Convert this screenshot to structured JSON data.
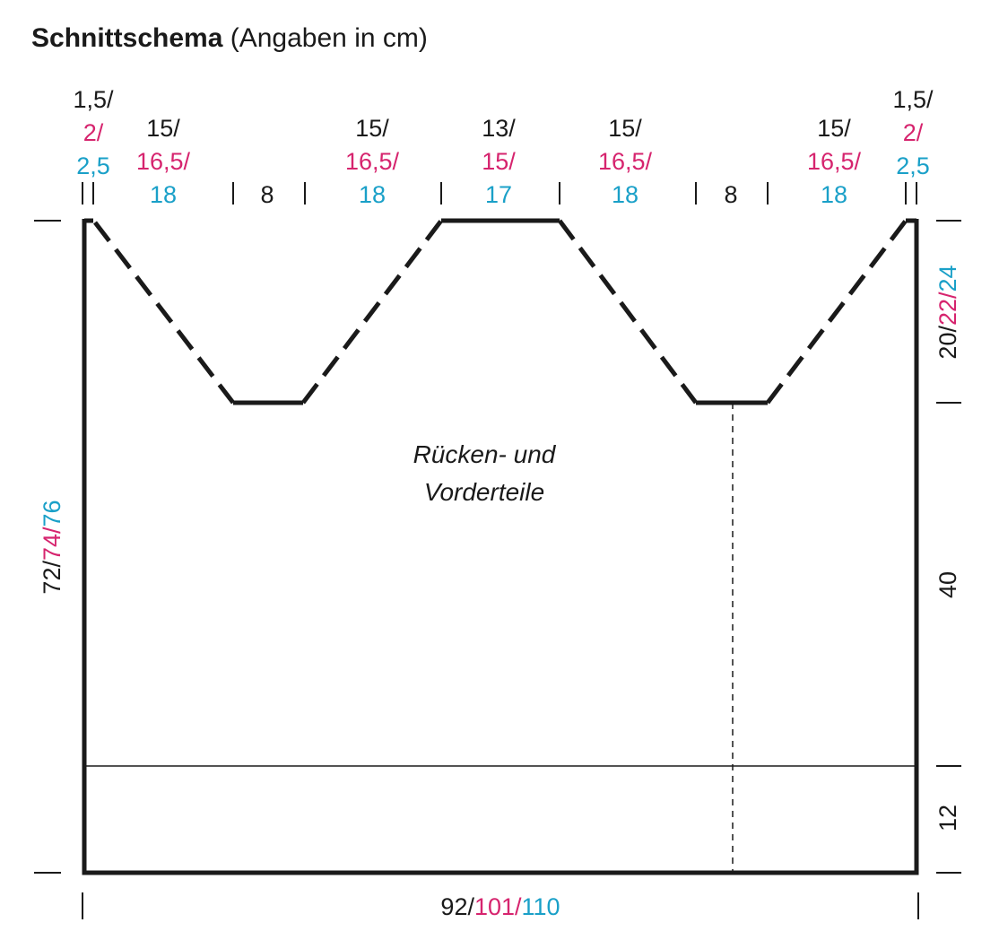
{
  "header": {
    "title": "Schnittschema",
    "subtitle": "(Angaben in cm)"
  },
  "top_measures": [
    [
      "1,5/",
      "2/",
      "2,5"
    ],
    [
      "15/",
      "16,5/",
      "18"
    ],
    [
      "8"
    ],
    [
      "15/",
      "16,5/",
      "18"
    ],
    [
      "13/",
      "15/",
      "17"
    ],
    [
      "15/",
      "16,5/",
      "18"
    ],
    [
      "8"
    ],
    [
      "15/",
      "16,5/",
      "18"
    ],
    [
      "1,5/",
      "2/",
      "2,5"
    ]
  ],
  "piece_label": [
    "Rücken- und",
    "Vorderteile"
  ],
  "left_measure": [
    "72/",
    "74/",
    "76"
  ],
  "right_measures": [
    [
      "20/",
      "22/",
      "24"
    ],
    [
      "40"
    ],
    [
      "12"
    ]
  ],
  "bottom_measure": [
    "92/",
    "101/",
    "110"
  ]
}
